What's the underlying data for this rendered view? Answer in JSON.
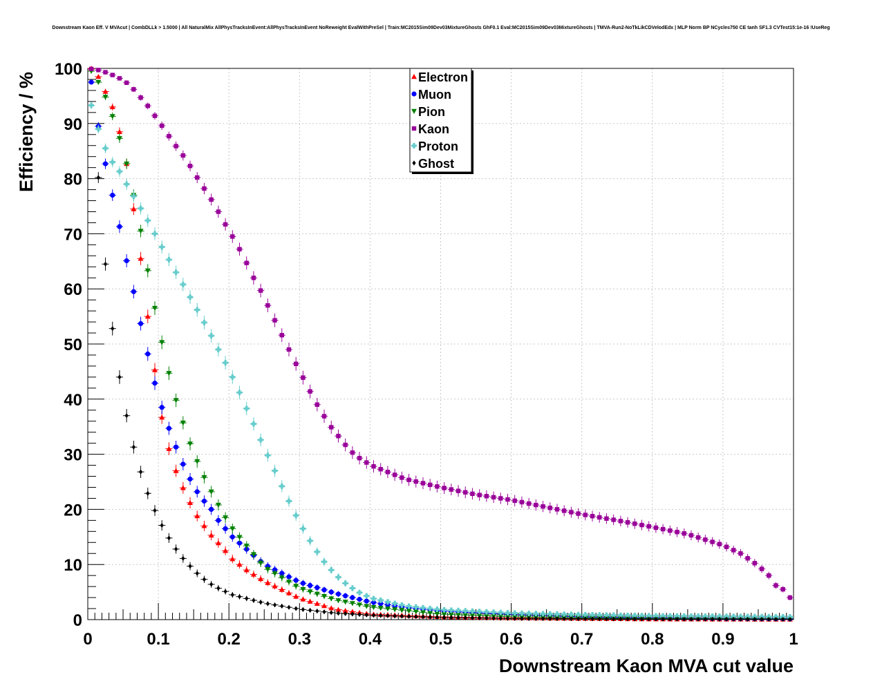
{
  "chart_data": {
    "type": "scatter",
    "title": "Downstream Kaon Eff. V MVAcut | CombDLLk > 1.5000 | All NaturalMix AllPhysTracksInEvent:AllPhysTracksInEvent NoReweight EvalWithPreSel | Train:MC2015Sim09Dev03MixtureGhosts GhF0.1 Eval:MC2015Sim09Dev03MixtureGhosts | TMVA-Run2-NoTkLikCDVelodEdx | MLP Norm BP NCycles750 CE tanh SF1.3 CVTest15:1e-16 !UseReg",
    "xlabel": "Downstream Kaon MVA cut value",
    "ylabel": "Efficiency / %",
    "xlim": [
      0,
      1
    ],
    "ylim": [
      0,
      100
    ],
    "xticks": [
      "0",
      "0.1",
      "0.2",
      "0.3",
      "0.4",
      "0.5",
      "0.6",
      "0.7",
      "0.8",
      "0.9",
      "1"
    ],
    "yticks": [
      "0",
      "10",
      "20",
      "30",
      "40",
      "50",
      "60",
      "70",
      "80",
      "90",
      "100"
    ],
    "grid": true,
    "legend_position": "top-center",
    "series": [
      {
        "name": "Electron",
        "color": "#ff0000",
        "marker": "triangle-up",
        "anchors": [
          [
            0.005,
            100
          ],
          [
            0.015,
            98.5
          ],
          [
            0.025,
            95.8
          ],
          [
            0.035,
            93
          ],
          [
            0.045,
            88.5
          ],
          [
            0.055,
            82.7
          ],
          [
            0.065,
            74.5
          ],
          [
            0.075,
            65.5
          ],
          [
            0.085,
            55
          ],
          [
            0.095,
            45.3
          ],
          [
            0.105,
            36.7
          ],
          [
            0.115,
            31
          ],
          [
            0.125,
            27
          ],
          [
            0.135,
            23.9
          ],
          [
            0.145,
            21.2
          ],
          [
            0.155,
            18.8
          ],
          [
            0.165,
            17
          ],
          [
            0.175,
            15.3
          ],
          [
            0.185,
            13.9
          ],
          [
            0.195,
            12.5
          ],
          [
            0.205,
            11
          ],
          [
            0.225,
            9
          ],
          [
            0.25,
            7
          ],
          [
            0.3,
            3.9
          ],
          [
            0.35,
            1.9
          ],
          [
            0.4,
            1
          ],
          [
            0.5,
            0.5
          ],
          [
            0.6,
            0.3
          ],
          [
            0.8,
            0.1
          ],
          [
            1,
            0.05
          ]
        ]
      },
      {
        "name": "Muon",
        "color": "#0000ff",
        "marker": "circle",
        "anchors": [
          [
            0.005,
            97.5
          ],
          [
            0.015,
            89.5
          ],
          [
            0.025,
            82.7
          ],
          [
            0.035,
            77
          ],
          [
            0.045,
            71.3
          ],
          [
            0.055,
            65.1
          ],
          [
            0.065,
            59.5
          ],
          [
            0.075,
            53.7
          ],
          [
            0.085,
            48.2
          ],
          [
            0.095,
            42.9
          ],
          [
            0.105,
            38.5
          ],
          [
            0.115,
            34.7
          ],
          [
            0.125,
            31.3
          ],
          [
            0.135,
            28.2
          ],
          [
            0.145,
            25.5
          ],
          [
            0.155,
            23.2
          ],
          [
            0.165,
            21.5
          ],
          [
            0.175,
            20
          ],
          [
            0.185,
            18
          ],
          [
            0.195,
            16.5
          ],
          [
            0.205,
            15
          ],
          [
            0.25,
            10
          ],
          [
            0.3,
            6.8
          ],
          [
            0.35,
            4.8
          ],
          [
            0.4,
            3.2
          ],
          [
            0.45,
            2.2
          ],
          [
            0.5,
            1.6
          ],
          [
            0.6,
            0.9
          ],
          [
            0.7,
            0.5
          ],
          [
            0.8,
            0.3
          ],
          [
            0.9,
            0.2
          ],
          [
            1,
            0.15
          ]
        ]
      },
      {
        "name": "Pion",
        "color": "#008000",
        "marker": "triangle-down",
        "anchors": [
          [
            0.005,
            99.5
          ],
          [
            0.015,
            97.5
          ],
          [
            0.025,
            94.8
          ],
          [
            0.035,
            91.3
          ],
          [
            0.045,
            87.3
          ],
          [
            0.055,
            82.7
          ],
          [
            0.065,
            77
          ],
          [
            0.075,
            70.5
          ],
          [
            0.085,
            63.3
          ],
          [
            0.095,
            56.5
          ],
          [
            0.105,
            50.3
          ],
          [
            0.115,
            44.7
          ],
          [
            0.125,
            39.8
          ],
          [
            0.135,
            35.7
          ],
          [
            0.145,
            31.9
          ],
          [
            0.155,
            28.7
          ],
          [
            0.165,
            25.8
          ],
          [
            0.175,
            23.2
          ],
          [
            0.185,
            20.8
          ],
          [
            0.195,
            18.5
          ],
          [
            0.205,
            16.5
          ],
          [
            0.25,
            9.5
          ],
          [
            0.3,
            5.7
          ],
          [
            0.35,
            3.6
          ],
          [
            0.4,
            2.3
          ],
          [
            0.5,
            1
          ],
          [
            0.6,
            0.5
          ],
          [
            0.7,
            0.3
          ],
          [
            0.8,
            0.2
          ],
          [
            1,
            0.1
          ]
        ]
      },
      {
        "name": "Kaon",
        "color": "#990099",
        "marker": "square",
        "anchors": [
          [
            0.005,
            99.9
          ],
          [
            0.015,
            99.7
          ],
          [
            0.025,
            99.3
          ],
          [
            0.035,
            98.8
          ],
          [
            0.045,
            98.2
          ],
          [
            0.055,
            97.4
          ],
          [
            0.065,
            96.2
          ],
          [
            0.075,
            94.7
          ],
          [
            0.085,
            93.2
          ],
          [
            0.095,
            91.4
          ],
          [
            0.105,
            89.6
          ],
          [
            0.115,
            87.7
          ],
          [
            0.125,
            85.9
          ],
          [
            0.135,
            84.2
          ],
          [
            0.145,
            82.3
          ],
          [
            0.155,
            80.2
          ],
          [
            0.165,
            78.2
          ],
          [
            0.175,
            76.2
          ],
          [
            0.185,
            74
          ],
          [
            0.195,
            71.7
          ],
          [
            0.205,
            69.5
          ],
          [
            0.215,
            67.2
          ],
          [
            0.225,
            64.7
          ],
          [
            0.235,
            62
          ],
          [
            0.245,
            59.7
          ],
          [
            0.255,
            57
          ],
          [
            0.265,
            54.3
          ],
          [
            0.275,
            51.6
          ],
          [
            0.285,
            49
          ],
          [
            0.295,
            46.4
          ],
          [
            0.305,
            43.9
          ],
          [
            0.315,
            41.4
          ],
          [
            0.325,
            39
          ],
          [
            0.335,
            36.9
          ],
          [
            0.345,
            34.9
          ],
          [
            0.355,
            33.3
          ],
          [
            0.365,
            31.7
          ],
          [
            0.375,
            30.3
          ],
          [
            0.385,
            29.3
          ],
          [
            0.395,
            28.5
          ],
          [
            0.405,
            27.8
          ],
          [
            0.45,
            25.5
          ],
          [
            0.5,
            24
          ],
          [
            0.55,
            22.7
          ],
          [
            0.6,
            21.7
          ],
          [
            0.65,
            20.4
          ],
          [
            0.7,
            19.1
          ],
          [
            0.75,
            18
          ],
          [
            0.8,
            16.8
          ],
          [
            0.85,
            15.5
          ],
          [
            0.9,
            13.5
          ],
          [
            0.925,
            12
          ],
          [
            0.95,
            9.8
          ],
          [
            0.965,
            8
          ],
          [
            0.975,
            6.2
          ],
          [
            0.985,
            5.5
          ],
          [
            0.995,
            4
          ]
        ]
      },
      {
        "name": "Proton",
        "color": "#66cccc",
        "marker": "cross",
        "anchors": [
          [
            0.005,
            93.3
          ],
          [
            0.015,
            89
          ],
          [
            0.025,
            85.5
          ],
          [
            0.035,
            83
          ],
          [
            0.045,
            81.3
          ],
          [
            0.055,
            79
          ],
          [
            0.065,
            76.8
          ],
          [
            0.075,
            74.6
          ],
          [
            0.085,
            72.4
          ],
          [
            0.095,
            70
          ],
          [
            0.105,
            67.6
          ],
          [
            0.115,
            65.3
          ],
          [
            0.125,
            63
          ],
          [
            0.135,
            60.8
          ],
          [
            0.145,
            58.5
          ],
          [
            0.155,
            56.2
          ],
          [
            0.165,
            53.9
          ],
          [
            0.175,
            51.5
          ],
          [
            0.185,
            49
          ],
          [
            0.195,
            46.6
          ],
          [
            0.205,
            44
          ],
          [
            0.215,
            41.2
          ],
          [
            0.225,
            38.3
          ],
          [
            0.235,
            35.5
          ],
          [
            0.245,
            32.6
          ],
          [
            0.255,
            29.8
          ],
          [
            0.265,
            27
          ],
          [
            0.275,
            24.2
          ],
          [
            0.285,
            21.5
          ],
          [
            0.295,
            18.9
          ],
          [
            0.305,
            16.5
          ],
          [
            0.315,
            14.3
          ],
          [
            0.325,
            12.3
          ],
          [
            0.335,
            10.5
          ],
          [
            0.345,
            9
          ],
          [
            0.355,
            7.7
          ],
          [
            0.365,
            6.6
          ],
          [
            0.375,
            5.7
          ],
          [
            0.385,
            4.9
          ],
          [
            0.395,
            4.3
          ],
          [
            0.405,
            3.8
          ],
          [
            0.45,
            2.5
          ],
          [
            0.5,
            1.8
          ],
          [
            0.6,
            1.2
          ],
          [
            0.7,
            0.9
          ],
          [
            0.8,
            0.7
          ],
          [
            0.9,
            0.6
          ],
          [
            1,
            0.5
          ]
        ]
      },
      {
        "name": "Ghost",
        "color": "#000000",
        "marker": "diamond",
        "anchors": [
          [
            0.015,
            80.2
          ],
          [
            0.025,
            64.5
          ],
          [
            0.035,
            52.8
          ],
          [
            0.045,
            44
          ],
          [
            0.055,
            37
          ],
          [
            0.065,
            31.3
          ],
          [
            0.075,
            26.8
          ],
          [
            0.085,
            22.9
          ],
          [
            0.095,
            19.8
          ],
          [
            0.105,
            17.1
          ],
          [
            0.115,
            14.8
          ],
          [
            0.125,
            12.8
          ],
          [
            0.135,
            11.1
          ],
          [
            0.145,
            9.7
          ],
          [
            0.155,
            8.4
          ],
          [
            0.165,
            7.3
          ],
          [
            0.175,
            6.4
          ],
          [
            0.185,
            5.7
          ],
          [
            0.195,
            5.1
          ],
          [
            0.205,
            4.5
          ],
          [
            0.25,
            3
          ],
          [
            0.3,
            1.9
          ],
          [
            0.35,
            1.2
          ],
          [
            0.4,
            0.8
          ],
          [
            0.5,
            0.4
          ],
          [
            0.6,
            0.2
          ],
          [
            0.8,
            0.1
          ],
          [
            1,
            0.05
          ]
        ]
      }
    ]
  }
}
